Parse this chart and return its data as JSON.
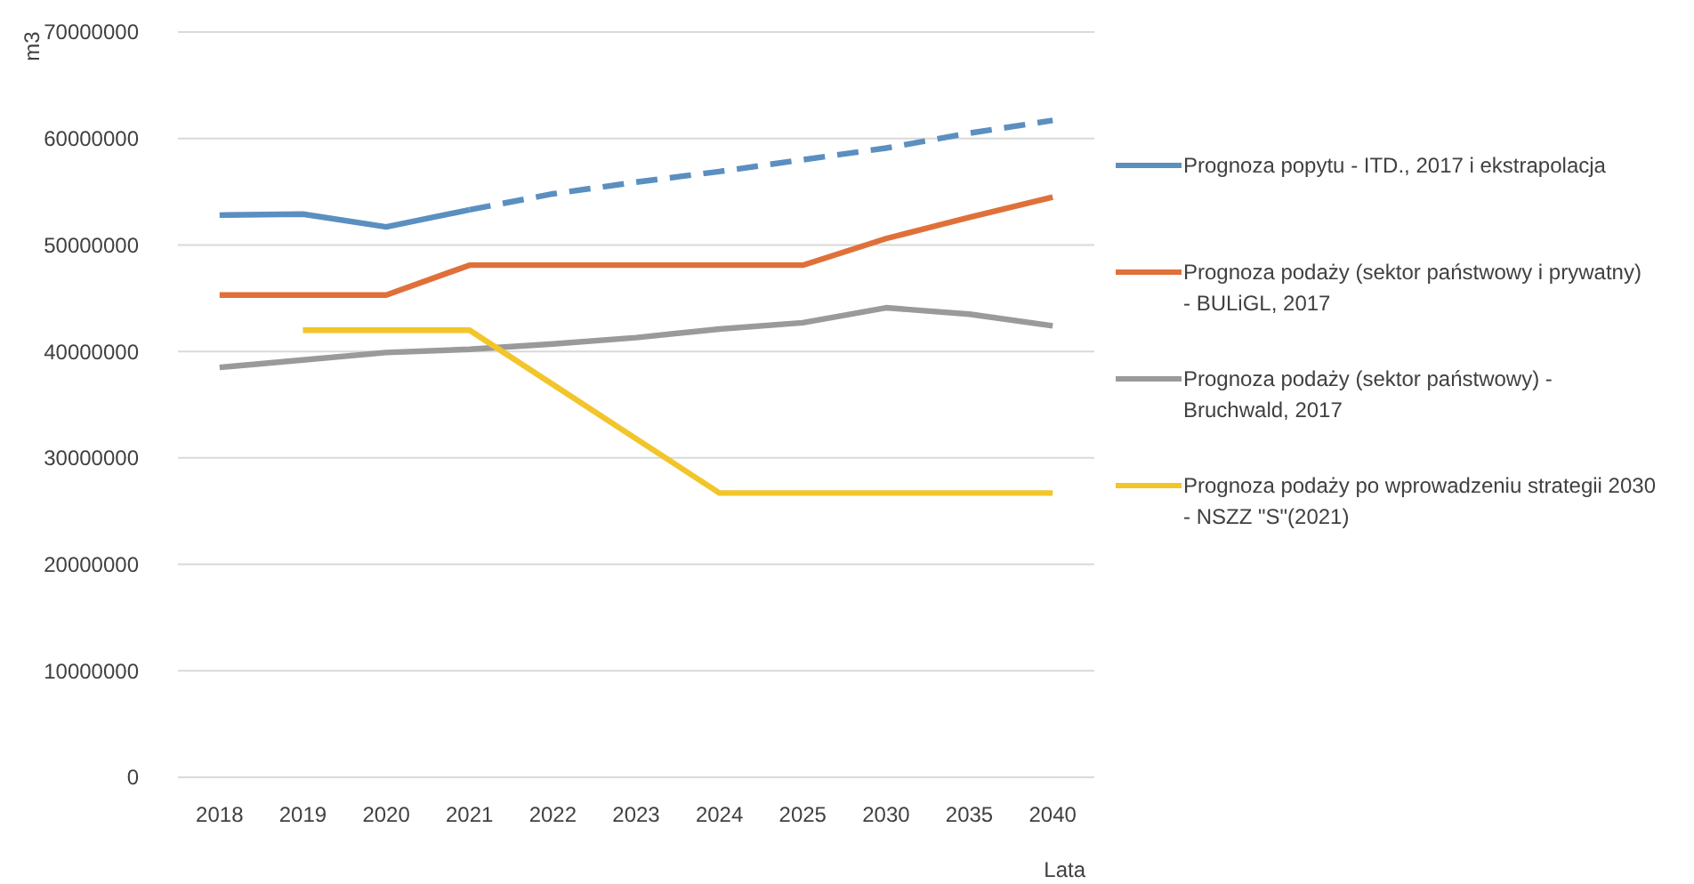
{
  "chart_data": {
    "type": "line",
    "xlabel": "Lata",
    "ylabel": "m3",
    "categories": [
      "2018",
      "2019",
      "2020",
      "2021",
      "2022",
      "2023",
      "2024",
      "2025",
      "2030",
      "2035",
      "2040"
    ],
    "series": [
      {
        "name": "Prognoza popytu - ITD., 2017 i ekstrapolacja",
        "color": "#5b8fc0",
        "values": [
          52800000,
          52900000,
          51700000,
          53300000,
          null,
          null,
          null,
          null,
          null,
          null,
          null
        ]
      },
      {
        "color": "#5b8fc0",
        "line_style": "dashed",
        "values": [
          null,
          null,
          null,
          53300000,
          54800000,
          55900000,
          56900000,
          58000000,
          59100000,
          60500000,
          61700000
        ]
      },
      {
        "name": "Prognoza podaży (sektor państwowy i prywatny) - BULiGL, 2017",
        "color": "#e0703a",
        "values": [
          45300000,
          45300000,
          45300000,
          48100000,
          48100000,
          48100000,
          48100000,
          48100000,
          50600000,
          52600000,
          54500000
        ]
      },
      {
        "name": "Prognoza podaży (sektor państwowy) - Bruchwald, 2017",
        "color": "#9a9a9a",
        "values": [
          38500000,
          39200000,
          39900000,
          40200000,
          40700000,
          41300000,
          42100000,
          42700000,
          44100000,
          43500000,
          42400000
        ]
      },
      {
        "name": "Prognoza podaży po wprowadzeniu strategii 2030 - NSZZ \"S\"(2021)",
        "color": "#f2c52a",
        "values": [
          null,
          42000000,
          42000000,
          42000000,
          36900000,
          31800000,
          26700000,
          26700000,
          26700000,
          26700000,
          26700000
        ]
      }
    ],
    "ylim": [
      0,
      70000000
    ],
    "yticks": [
      0,
      10000000,
      20000000,
      30000000,
      40000000,
      50000000,
      60000000,
      70000000
    ],
    "grid": "y",
    "legend": "right",
    "marker": "none",
    "line_style": "solid"
  }
}
